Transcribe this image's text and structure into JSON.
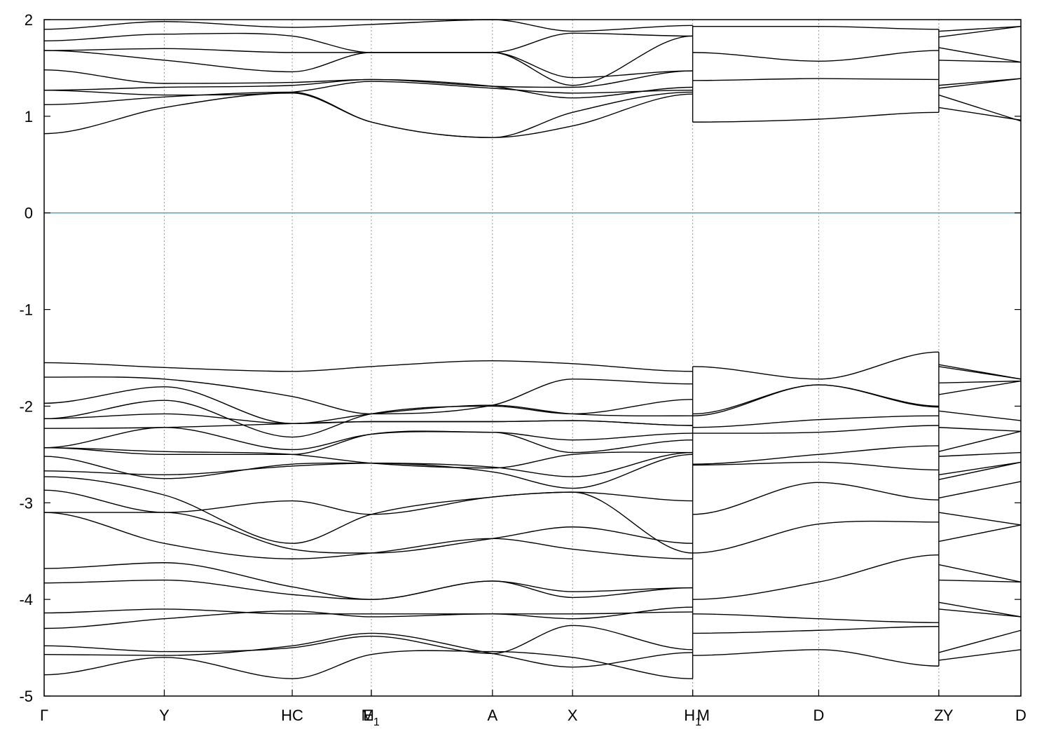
{
  "chart_data": {
    "type": "line",
    "title": "",
    "xlabel": "",
    "ylabel": "",
    "ylim": [
      -5,
      2
    ],
    "yticks": [
      2,
      1,
      0,
      -1,
      -2,
      -3,
      -4,
      -5
    ],
    "ytick_labels": [
      "2",
      "1",
      "0",
      "-1",
      "-2",
      "-3",
      "-4",
      "-5"
    ],
    "grid": "vertical dotted lines at high-symmetry points",
    "zero_line": {
      "y": 0,
      "color": "#4aa8c8"
    },
    "line_color": "#000000",
    "xlim": [
      0,
      1.0
    ],
    "kpoints": [
      {
        "x": 0.0,
        "label": "Γ"
      },
      {
        "x": 0.123,
        "label": "Y"
      },
      {
        "x": 0.254,
        "label": "HC"
      },
      {
        "x": 0.335,
        "label": "E",
        "sub": "1"
      },
      {
        "x": 0.335,
        "label": "M",
        "anchor": "end"
      },
      {
        "x": 0.459,
        "label": "A"
      },
      {
        "x": 0.541,
        "label": "X"
      },
      {
        "x": 0.664,
        "label": "H",
        "sub": "1"
      },
      {
        "x": 0.664,
        "label": "M",
        "anchor": "start"
      },
      {
        "x": 0.793,
        "label": "D"
      },
      {
        "x": 0.916,
        "label": "Z"
      },
      {
        "x": 0.916,
        "label": "Y",
        "anchor": "start"
      },
      {
        "x": 1.0,
        "label": "D"
      }
    ],
    "segments": [
      {
        "x": [
          0.0,
          0.123,
          0.254,
          0.335,
          0.459,
          0.541,
          0.664
        ],
        "bands": [
          [
            -4.78,
            -4.6,
            -4.82,
            -4.57,
            -4.54,
            -4.6,
            -4.82
          ],
          [
            -4.57,
            -4.58,
            -4.48,
            -4.35,
            -4.56,
            -4.7,
            -4.55
          ],
          [
            -4.48,
            -4.54,
            -4.5,
            -4.38,
            -4.56,
            -4.27,
            -4.52
          ],
          [
            -4.3,
            -4.2,
            -4.12,
            -4.18,
            -4.15,
            -4.2,
            -4.08
          ],
          [
            -4.14,
            -4.1,
            -4.15,
            -4.15,
            -4.15,
            -4.15,
            -4.13
          ],
          [
            -3.83,
            -3.8,
            -3.95,
            -4.0,
            -3.81,
            -3.98,
            -3.88
          ],
          [
            -3.68,
            -3.62,
            -3.87,
            -4.0,
            -3.81,
            -3.92,
            -3.88
          ],
          [
            -3.1,
            -3.42,
            -3.58,
            -3.52,
            -3.37,
            -3.48,
            -3.58
          ],
          [
            -3.1,
            -3.1,
            -3.48,
            -3.52,
            -3.37,
            -3.25,
            -3.42
          ],
          [
            -2.87,
            -3.1,
            -2.98,
            -3.12,
            -2.94,
            -2.89,
            -2.98
          ],
          [
            -2.73,
            -2.92,
            -3.42,
            -3.12,
            -2.94,
            -2.89,
            -3.52
          ],
          [
            -2.67,
            -2.71,
            -2.62,
            -2.59,
            -2.68,
            -2.85,
            -2.5
          ],
          [
            -2.52,
            -2.75,
            -2.6,
            -2.59,
            -2.63,
            -2.73,
            -2.48
          ],
          [
            -2.43,
            -2.47,
            -2.5,
            -2.59,
            -2.64,
            -2.5,
            -2.48
          ],
          [
            -2.43,
            -2.5,
            -2.5,
            -2.29,
            -2.27,
            -2.48,
            -2.35
          ],
          [
            -2.43,
            -2.22,
            -2.45,
            -2.29,
            -2.27,
            -2.35,
            -2.28
          ],
          [
            -2.23,
            -2.22,
            -2.18,
            -2.16,
            -2.16,
            -2.15,
            -2.2
          ],
          [
            -2.13,
            -2.08,
            -2.18,
            -2.16,
            -2.16,
            -2.15,
            -2.2
          ],
          [
            -2.13,
            -1.94,
            -2.32,
            -2.08,
            -2.0,
            -2.08,
            -1.93
          ],
          [
            -1.97,
            -1.8,
            -2.18,
            -2.08,
            -1.99,
            -2.08,
            -2.1
          ],
          [
            -1.7,
            -1.72,
            -1.9,
            -2.08,
            -1.99,
            -1.72,
            -1.77
          ],
          [
            -1.55,
            -1.6,
            -1.64,
            -1.59,
            -1.53,
            -1.56,
            -1.64
          ],
          [
            0.82,
            1.09,
            1.24,
            0.94,
            0.78,
            0.9,
            1.23
          ],
          [
            1.12,
            1.2,
            1.25,
            0.94,
            0.78,
            1.04,
            1.25
          ],
          [
            1.27,
            1.22,
            1.25,
            1.36,
            1.29,
            1.24,
            1.27
          ],
          [
            1.27,
            1.3,
            1.32,
            1.38,
            1.31,
            1.19,
            1.3
          ],
          [
            1.48,
            1.34,
            1.35,
            1.38,
            1.31,
            1.3,
            1.47
          ],
          [
            1.68,
            1.58,
            1.46,
            1.66,
            1.66,
            1.4,
            1.47
          ],
          [
            1.68,
            1.7,
            1.66,
            1.66,
            1.66,
            1.32,
            1.83
          ],
          [
            1.78,
            1.85,
            1.83,
            1.66,
            1.66,
            1.86,
            1.83
          ],
          [
            1.9,
            1.98,
            1.92,
            1.95,
            2.0,
            1.88,
            1.94
          ]
        ]
      },
      {
        "x": [
          0.664,
          0.793,
          0.916
        ],
        "bands": [
          [
            -4.58,
            -4.52,
            -4.69
          ],
          [
            -4.35,
            -4.32,
            -4.28
          ],
          [
            -4.15,
            -4.2,
            -4.24
          ],
          [
            -4.0,
            -3.82,
            -3.54
          ],
          [
            -3.52,
            -3.22,
            -3.2
          ],
          [
            -3.12,
            -2.79,
            -2.97
          ],
          [
            -2.61,
            -2.58,
            -2.66
          ],
          [
            -2.6,
            -2.5,
            -2.41
          ],
          [
            -2.28,
            -2.27,
            -2.2
          ],
          [
            -2.22,
            -2.14,
            -2.1
          ],
          [
            -2.1,
            -1.78,
            -2.01
          ],
          [
            -2.08,
            -1.78,
            -2.0
          ],
          [
            -1.59,
            -1.72,
            -1.44
          ],
          [
            0.94,
            0.97,
            1.04
          ],
          [
            1.37,
            1.39,
            1.38
          ],
          [
            1.66,
            1.57,
            1.68
          ],
          [
            1.93,
            1.93,
            1.9
          ]
        ]
      },
      {
        "x": [
          0.916,
          1.0
        ],
        "bands": [
          [
            -4.63,
            -4.52
          ],
          [
            -4.55,
            -4.32
          ],
          [
            -4.1,
            -4.18
          ],
          [
            -4.03,
            -4.18
          ],
          [
            -3.8,
            -3.82
          ],
          [
            -3.64,
            -3.82
          ],
          [
            -3.4,
            -3.23
          ],
          [
            -3.1,
            -3.23
          ],
          [
            -2.95,
            -2.78
          ],
          [
            -2.76,
            -2.58
          ],
          [
            -2.71,
            -2.58
          ],
          [
            -2.52,
            -2.48
          ],
          [
            -2.47,
            -2.26
          ],
          [
            -2.22,
            -2.26
          ],
          [
            -2.05,
            -2.15
          ],
          [
            -1.88,
            -1.74
          ],
          [
            -1.76,
            -1.74
          ],
          [
            -1.59,
            -1.72
          ],
          [
            -1.57,
            -1.72
          ],
          [
            1.09,
            0.96
          ],
          [
            1.22,
            0.95
          ],
          [
            1.29,
            1.39
          ],
          [
            1.32,
            1.39
          ],
          [
            1.58,
            1.56
          ],
          [
            1.71,
            1.56
          ],
          [
            1.82,
            1.93
          ],
          [
            1.88,
            1.93
          ]
        ]
      }
    ]
  }
}
